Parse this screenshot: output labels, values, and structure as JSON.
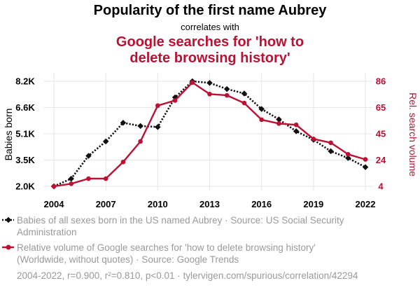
{
  "chart_data": {
    "type": "line",
    "title": "Popularity of the first name Aubrey",
    "subtitle": "correlates with",
    "title2_lines": [
      "Google searches for 'how to",
      "delete browsing history'"
    ],
    "x": [
      2004,
      2005,
      2006,
      2007,
      2008,
      2009,
      2010,
      2011,
      2012,
      2013,
      2014,
      2015,
      2016,
      2017,
      2018,
      2019,
      2020,
      2021,
      2022
    ],
    "xticks": [
      "2004",
      "2007",
      "2010",
      "2013",
      "2016",
      "2019",
      "2022"
    ],
    "xtick_values": [
      2004,
      2007,
      2010,
      2013,
      2016,
      2019,
      2022
    ],
    "ylabel_left": "Babies born",
    "ylabel_right": "Rel. search volume",
    "yticks_left": [
      "8.2K",
      "6.6K",
      "5.1K",
      "3.5K",
      "2.0K"
    ],
    "yticks_left_values": [
      8200,
      6650,
      5100,
      3550,
      2000
    ],
    "yticks_right": [
      "86",
      "65",
      "45",
      "24",
      "4"
    ],
    "yticks_right_values": [
      86,
      65.5,
      45,
      24.5,
      4
    ],
    "ylim_left": [
      2000,
      8200
    ],
    "ylim_right": [
      4,
      86
    ],
    "grid": true,
    "series": [
      {
        "name": "Babies of all sexes born in the US named Aubrey · Source: US Social Security Administration",
        "legend_lines": [
          "Babies of all sexes born in the US named Aubrey · Source: US Social Security",
          "Administration"
        ],
        "axis": "left",
        "color": "#111111",
        "style": "dotted",
        "marker": "diamond",
        "values": [
          2000,
          2450,
          3800,
          4650,
          5750,
          5560,
          5500,
          7250,
          8200,
          8100,
          7740,
          7480,
          6560,
          5950,
          5250,
          4750,
          4070,
          3670,
          3130
        ]
      },
      {
        "name": "Relative volume of Google searches for 'how to delete browsing history' (Worldwide, without quotes) · Source: Google Trends",
        "legend_lines": [
          "Relative volume of Google searches for 'how to delete browsing history'",
          "(Worldwide, without quotes) · Source: Google Trends"
        ],
        "axis": "right",
        "color": "#bb1133",
        "style": "solid",
        "marker": "circle",
        "values": [
          4,
          6,
          10,
          10,
          23,
          39,
          67,
          71,
          85,
          76,
          75,
          69,
          56,
          53,
          52,
          41,
          38,
          29,
          25
        ]
      }
    ],
    "footer": "2004-2022, r=0.900, r²=0.810, p<0.01 · tylervigen.com/spurious/correlation/42294"
  },
  "colors": {
    "title": "#000000",
    "title2": "#bb1133",
    "grid": "#e6e6e6",
    "legend_text": "#999999",
    "footer_text": "#999999"
  }
}
